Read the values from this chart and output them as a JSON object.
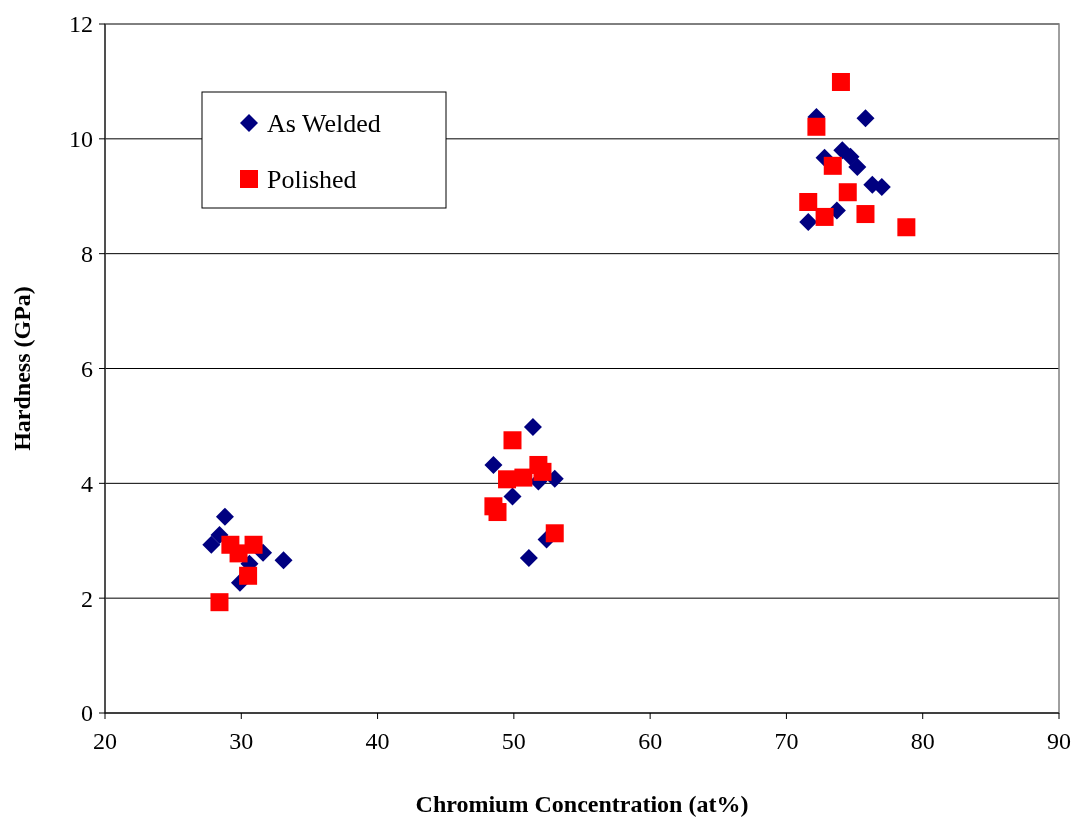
{
  "chart_data": {
    "type": "scatter",
    "xlabel": "Chromium Concentration (at%)",
    "ylabel": "Hardness (GPa)",
    "xlim": [
      20,
      90
    ],
    "xticks": [
      20,
      30,
      40,
      50,
      60,
      70,
      80,
      90
    ],
    "ylim": [
      0,
      12
    ],
    "yticks": [
      0,
      2,
      4,
      6,
      8,
      10,
      12
    ],
    "grid": "y",
    "legend": "top left",
    "series": [
      {
        "name": "As Welded",
        "color": "#000080",
        "marker": "diamond",
        "x": [
          28.8,
          28.4,
          27.8,
          31.6,
          33.1,
          29.9,
          30.6,
          51.4,
          48.5,
          53.0,
          51.8,
          49.9,
          52.4,
          51.1,
          72.2,
          75.8,
          72.8,
          74.1,
          74.7,
          75.2,
          76.3,
          77.0,
          73.7,
          71.6
        ],
        "values": [
          3.42,
          3.1,
          2.93,
          2.79,
          2.66,
          2.27,
          2.6,
          4.98,
          4.32,
          4.08,
          4.03,
          3.77,
          3.02,
          2.7,
          10.38,
          10.36,
          9.67,
          9.8,
          9.69,
          9.51,
          9.2,
          9.16,
          8.75,
          8.55
        ]
      },
      {
        "name": "Polished",
        "color": "#ff0000",
        "marker": "square",
        "x": [
          29.2,
          30.9,
          29.8,
          30.5,
          28.4,
          49.9,
          49.5,
          50.7,
          51.8,
          52.1,
          48.5,
          48.8,
          53.0,
          74.0,
          72.2,
          73.4,
          74.5,
          71.6,
          72.8,
          75.8,
          78.8
        ],
        "values": [
          2.93,
          2.93,
          2.78,
          2.39,
          1.93,
          4.75,
          4.07,
          4.1,
          4.32,
          4.2,
          3.6,
          3.5,
          3.13,
          10.99,
          10.21,
          9.53,
          9.07,
          8.9,
          8.64,
          8.69,
          8.46
        ]
      }
    ]
  }
}
